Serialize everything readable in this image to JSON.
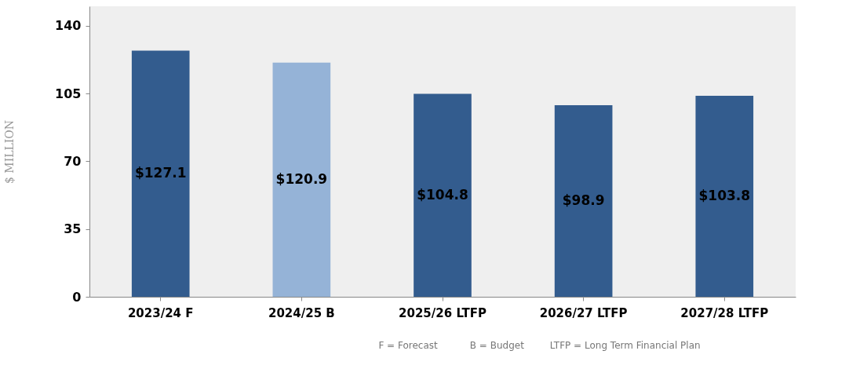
{
  "chart_data": {
    "type": "bar",
    "ylabel": "$ MILLION",
    "categories": [
      "2023/24 F",
      "2024/25 B",
      "2025/26 LTFP",
      "2026/27 LTFP",
      "2027/28 LTFP"
    ],
    "values": [
      127.1,
      120.9,
      104.8,
      98.9,
      103.8
    ],
    "colors": [
      "#335c8e",
      "#95b3d7",
      "#335c8e",
      "#335c8e",
      "#335c8e"
    ],
    "value_labels": [
      "$127.1",
      "$120.9",
      "$104.8",
      "$98.9",
      "$103.8"
    ],
    "ylim": [
      0,
      150
    ],
    "yticks": [
      0,
      35,
      70,
      105,
      140
    ],
    "grid": false,
    "annotations": [
      "F = Forecast",
      "B = Budget",
      "LTFP = Long Term Financial Plan"
    ]
  }
}
